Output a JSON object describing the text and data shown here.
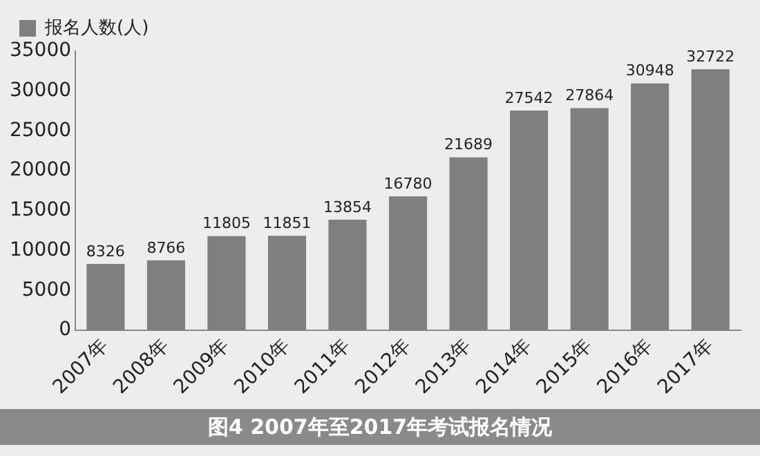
{
  "chart_data": {
    "type": "bar",
    "categories": [
      "2007年",
      "2008年",
      "2009年",
      "2010年",
      "2011年",
      "2012年",
      "2013年",
      "2014年",
      "2015年",
      "2016年",
      "2017年"
    ],
    "series": [
      {
        "name": "报名人数(人)",
        "color": "#7f7f7f",
        "values": [
          8326,
          8766,
          11805,
          11851,
          13854,
          16780,
          21689,
          27542,
          27864,
          30948,
          32722
        ]
      }
    ],
    "ylim": [
      0,
      35000
    ],
    "yticks": [
      0,
      5000,
      10000,
      15000,
      20000,
      25000,
      30000,
      35000
    ],
    "grid": false,
    "legend": "top left",
    "data_labels": true,
    "annotations": [
      "图4  2007年至2017年考试报名情况"
    ]
  }
}
